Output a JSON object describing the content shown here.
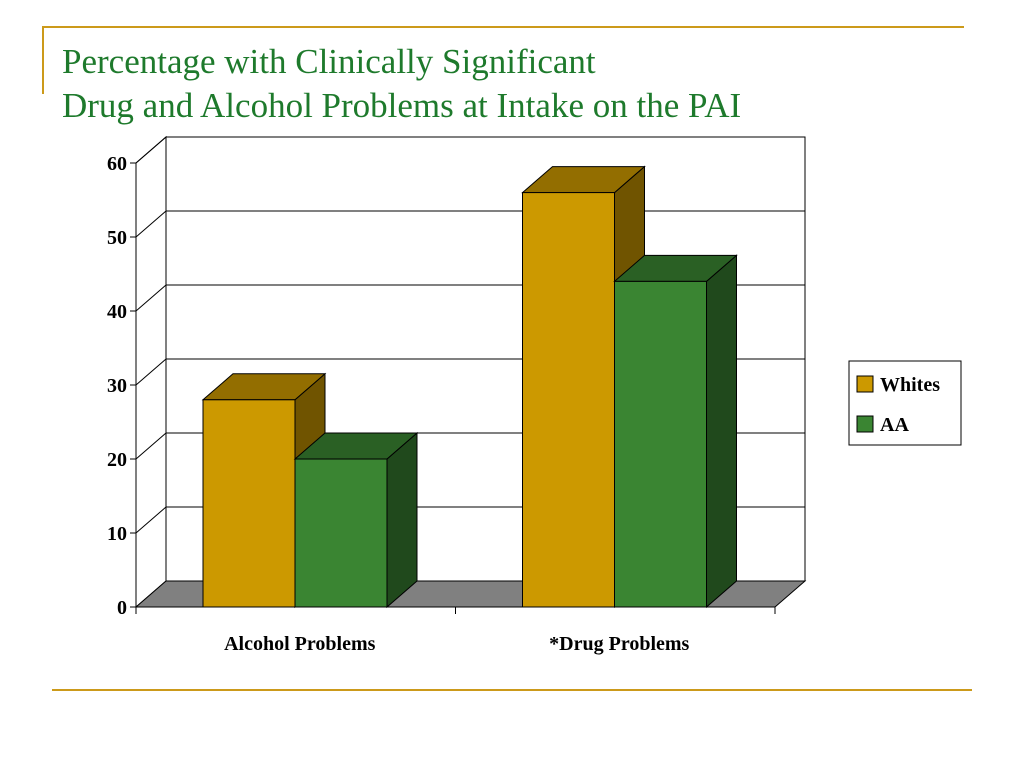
{
  "title": {
    "line1": "Percentage with Clinically Significant",
    "line2": "Drug and Alcohol Problems at Intake on the PAI"
  },
  "chart_data": {
    "type": "bar",
    "style": "3d-clustered-column",
    "categories": [
      "Alcohol Problems",
      "*Drug Problems"
    ],
    "series": [
      {
        "name": "Whites",
        "values": [
          28,
          56
        ],
        "color": "#cc9900"
      },
      {
        "name": "AA",
        "values": [
          20,
          44
        ],
        "color": "#3a8532"
      }
    ],
    "y_ticks": [
      "0",
      "10",
      "20",
      "30",
      "40",
      "50",
      "60"
    ],
    "ylim": [
      0,
      60
    ],
    "grid": true,
    "legend_position": "right",
    "xlabel": "",
    "ylabel": ""
  },
  "colors": {
    "accent_rule": "#cc9a1a",
    "title_text": "#1e7a2c",
    "floor": "#808080"
  }
}
